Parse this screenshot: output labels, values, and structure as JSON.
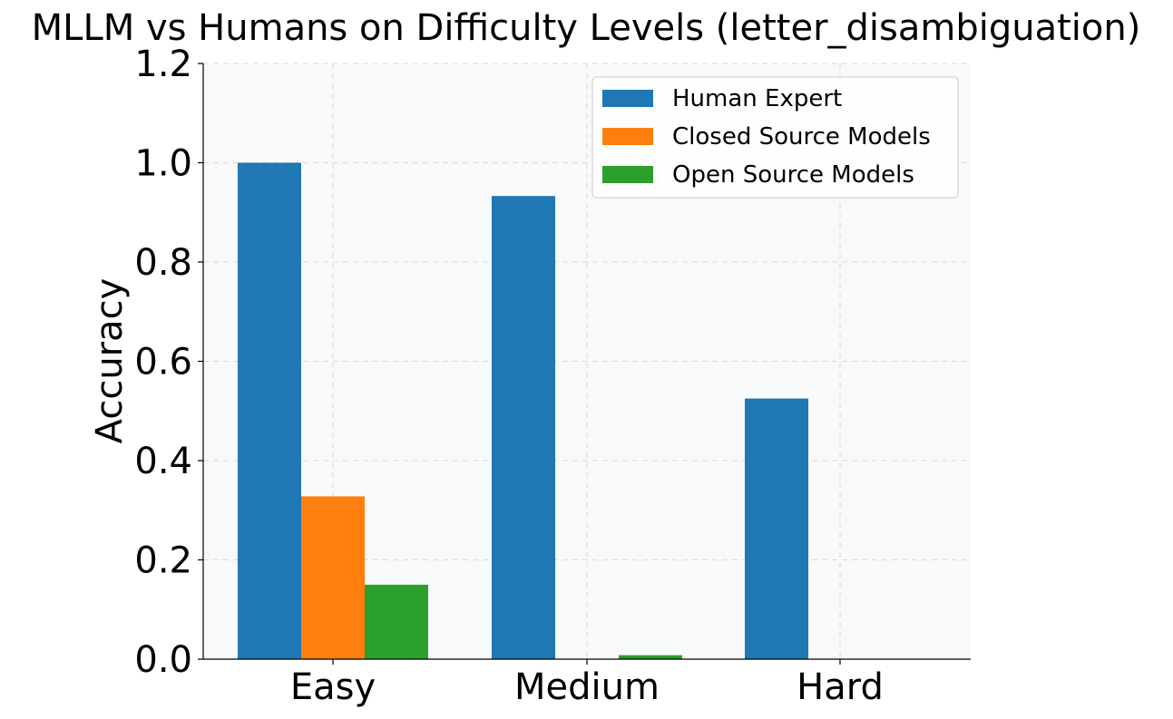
{
  "chart_data": {
    "type": "bar",
    "title": "MLLM vs Humans on Difficulty Levels (letter_disambiguation)",
    "xlabel": "",
    "ylabel": "Accuracy",
    "categories": [
      "Easy",
      "Medium",
      "Hard"
    ],
    "series": [
      {
        "name": "Human Expert",
        "color": "#1f77b4",
        "values": [
          1.0,
          0.933,
          0.525
        ]
      },
      {
        "name": "Closed Source Models",
        "color": "#ff7f0e",
        "values": [
          0.328,
          0.0,
          0.0
        ]
      },
      {
        "name": "Open Source Models",
        "color": "#2ca02c",
        "values": [
          0.15,
          0.008,
          0.0
        ]
      }
    ],
    "ylim": [
      0.0,
      1.2
    ],
    "yticks": [
      "0.0",
      "0.2",
      "0.4",
      "0.6",
      "0.8",
      "1.0",
      "1.2"
    ],
    "grid": true,
    "legend_position": "top-right",
    "plot_background": "#f8f9fa"
  }
}
